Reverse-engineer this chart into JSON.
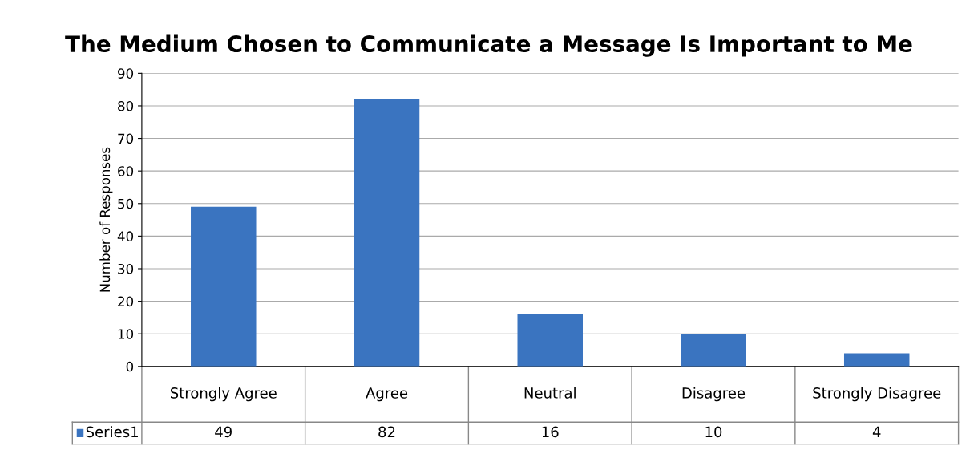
{
  "chart_data": {
    "type": "bar",
    "title": "The Medium Chosen to Communicate a Message Is Important to Me",
    "ylabel": "Number of Responses",
    "categories": [
      "Strongly Agree",
      "Agree",
      "Neutral",
      "Disagree",
      "Strongly Disagree"
    ],
    "series": [
      {
        "name": "Series1",
        "color": "#3a74c0",
        "values": [
          49,
          82,
          16,
          10,
          4
        ]
      }
    ],
    "ylim": [
      0,
      90
    ],
    "yticks": [
      0,
      10,
      20,
      30,
      40,
      50,
      60,
      70,
      80,
      90
    ],
    "grid": "y",
    "data_labels": true,
    "legend": "bottom"
  }
}
